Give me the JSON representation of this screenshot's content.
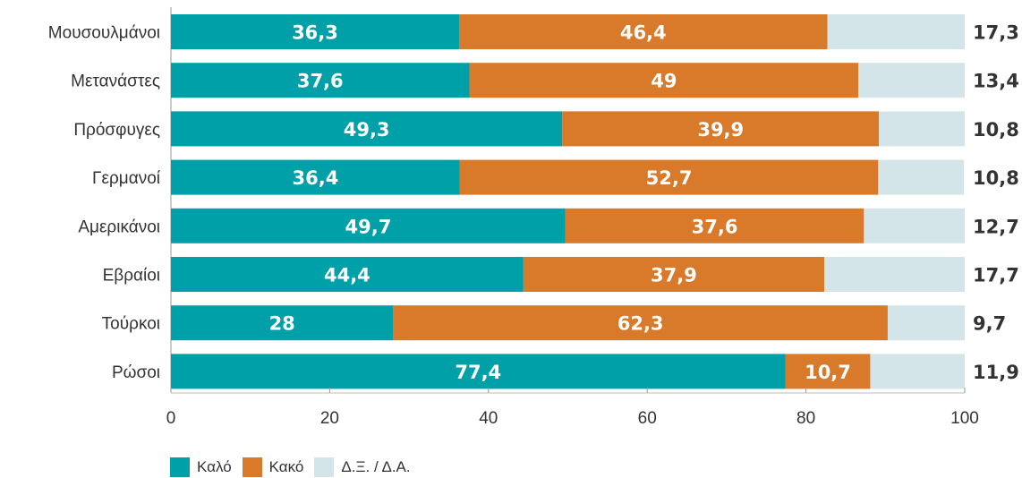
{
  "chart_data": {
    "type": "bar",
    "orientation": "horizontal",
    "stacked": true,
    "categories": [
      "Μουσουλμάνοι",
      "Μετανάστες",
      "Πρόσφυγες",
      "Γερμανοί",
      "Αμερικάνοι",
      "Εβραίοι",
      "Τούρκοι",
      "Ρώσοι"
    ],
    "series": [
      {
        "name": "Καλό",
        "color": "#00a0a8",
        "values": [
          36.3,
          37.6,
          49.3,
          36.4,
          49.7,
          44.4,
          28,
          77.4
        ],
        "labels": [
          "36,3",
          "37,6",
          "49,3",
          "36,4",
          "49,7",
          "44,4",
          "28",
          "77,4"
        ]
      },
      {
        "name": "Κακό",
        "color": "#d9792a",
        "values": [
          46.4,
          49,
          39.9,
          52.7,
          37.6,
          37.9,
          62.3,
          10.7
        ],
        "labels": [
          "46,4",
          "49",
          "39,9",
          "52,7",
          "37,6",
          "37,9",
          "62,3",
          "10,7"
        ]
      },
      {
        "name": "Δ.Ξ. / Δ.Α.",
        "color": "#d3e5e8",
        "values": [
          17.3,
          13.4,
          10.8,
          10.8,
          12.7,
          17.7,
          9.7,
          11.9
        ],
        "labels": [
          "17,3",
          "13,4",
          "10,8",
          "10,8",
          "12,7",
          "17,7",
          "9,7",
          "11,9"
        ]
      }
    ],
    "xlim": [
      0,
      100
    ],
    "xticks": [
      0,
      20,
      40,
      60,
      80,
      100
    ],
    "grid": false,
    "legend_position": "bottom-left"
  }
}
